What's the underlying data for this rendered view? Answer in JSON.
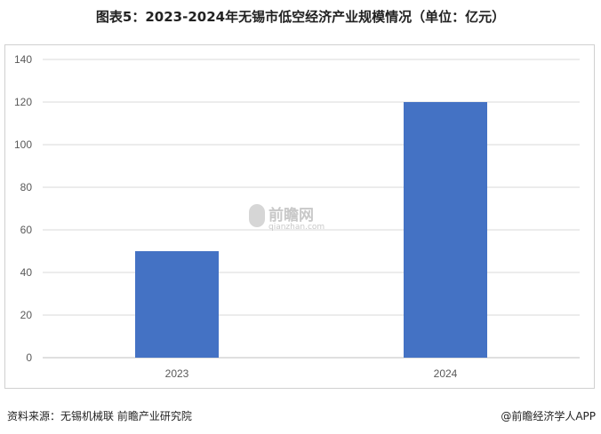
{
  "title": "图表5：2023-2024年无锡市低空经济产业规模情况（单位：亿元）",
  "source": "资料来源：无锡机械联  前瞻产业研究院",
  "brand": "@前瞻经济学人APP",
  "watermark": {
    "name": "前瞻网",
    "url": "qianzhan.com"
  },
  "chart_data": {
    "type": "bar",
    "title": "图表5：2023-2024年无锡市低空经济产业规模情况（单位：亿元）",
    "categories": [
      "2023",
      "2024"
    ],
    "values": [
      50,
      120
    ],
    "ylim": [
      0,
      140
    ],
    "yticks": [
      0,
      20,
      40,
      60,
      80,
      100,
      120,
      140
    ],
    "grid": true,
    "bar_color": "#4472c4"
  }
}
